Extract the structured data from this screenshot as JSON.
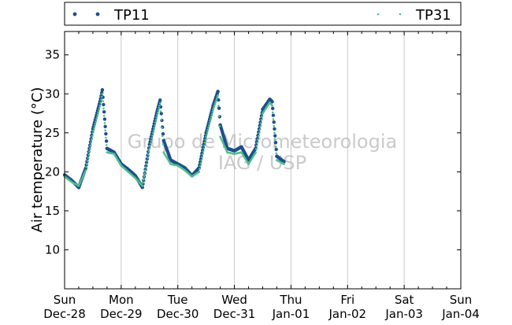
{
  "chart_data": {
    "type": "scatter",
    "title": "",
    "xlabel": "",
    "ylabel": "Air temperature (°C)",
    "ylim": [
      5,
      38
    ],
    "xlim": [
      "2014-12-28 00:00",
      "2015-01-04 00:00"
    ],
    "grid": "vertical lines at each day",
    "legend_position": "top, spanning full width",
    "x_ticks": [
      {
        "day": "Sun",
        "date": "Dec-28"
      },
      {
        "day": "Mon",
        "date": "Dec-29"
      },
      {
        "day": "Tue",
        "date": "Dec-30"
      },
      {
        "day": "Wed",
        "date": "Dec-31"
      },
      {
        "day": "Thu",
        "date": "Jan-01"
      },
      {
        "day": "Fri",
        "date": "Jan-02"
      },
      {
        "day": "Sat",
        "date": "Jan-03"
      },
      {
        "day": "Sun",
        "date": "Jan-04"
      }
    ],
    "y_ticks": [
      10,
      15,
      20,
      25,
      30,
      35
    ],
    "watermark": [
      "Grupo de Micrometeorologia",
      "IAG / USP"
    ],
    "series": [
      {
        "name": "TP11",
        "color": "#1f4e8c",
        "marker": "large dot",
        "x": [
          "12-28 00:00",
          "12-28 03:00",
          "12-28 06:00",
          "12-28 09:00",
          "12-28 12:00",
          "12-28 15:00",
          "12-28 16:00",
          "12-28 18:00",
          "12-28 21:00",
          "12-29 00:00",
          "12-29 03:00",
          "12-29 06:00",
          "12-29 09:00",
          "12-29 12:00",
          "12-29 15:00",
          "12-29 16:30",
          "12-29 18:00",
          "12-29 21:00",
          "12-30 00:00",
          "12-30 03:00",
          "12-30 06:00",
          "12-30 09:00",
          "12-30 12:00",
          "12-30 15:00",
          "12-30 17:00",
          "12-30 18:00",
          "12-30 21:00",
          "12-31 00:00",
          "12-31 03:00",
          "12-31 06:00",
          "12-31 09:00",
          "12-31 12:00",
          "12-31 15:00",
          "12-31 16:00",
          "12-31 18:00",
          "12-31 21:00"
        ],
        "y": [
          19.6,
          18.9,
          18.0,
          20.5,
          25.5,
          29.0,
          30.5,
          23.0,
          22.5,
          21.0,
          20.3,
          19.5,
          18.0,
          23.5,
          27.5,
          29.2,
          24.0,
          21.5,
          21.0,
          20.5,
          19.5,
          20.5,
          25.0,
          28.5,
          30.3,
          26.0,
          23.0,
          22.7,
          23.2,
          21.5,
          23.0,
          28.0,
          29.3,
          29.0,
          22.0,
          21.3
        ]
      },
      {
        "name": "TP31",
        "color": "#4fbf8a",
        "marker": "small dot",
        "x": [
          "12-28 00:00",
          "12-28 03:00",
          "12-28 06:00",
          "12-28 09:00",
          "12-28 12:00",
          "12-28 15:00",
          "12-28 16:00",
          "12-28 18:00",
          "12-28 21:00",
          "12-29 00:00",
          "12-29 03:00",
          "12-29 06:00",
          "12-29 09:00",
          "12-29 12:00",
          "12-29 15:00",
          "12-29 16:30",
          "12-29 18:00",
          "12-29 21:00",
          "12-30 00:00",
          "12-30 03:00",
          "12-30 06:00",
          "12-30 09:00",
          "12-30 12:00",
          "12-30 15:00",
          "12-30 17:00",
          "12-30 18:00",
          "12-30 21:00",
          "12-31 00:00",
          "12-31 03:00",
          "12-31 06:00",
          "12-31 09:00",
          "12-31 12:00",
          "12-31 15:00",
          "12-31 16:00",
          "12-31 18:00",
          "12-31 21:00"
        ],
        "y": [
          19.4,
          18.7,
          18.2,
          20.2,
          25.0,
          28.5,
          30.0,
          22.5,
          22.3,
          20.8,
          20.0,
          19.2,
          18.2,
          23.0,
          27.0,
          28.8,
          22.5,
          21.0,
          20.8,
          20.2,
          19.4,
          20.0,
          24.5,
          28.0,
          29.8,
          24.5,
          22.5,
          22.3,
          22.5,
          21.0,
          22.5,
          27.5,
          28.9,
          28.5,
          21.5,
          21.0
        ]
      }
    ]
  }
}
